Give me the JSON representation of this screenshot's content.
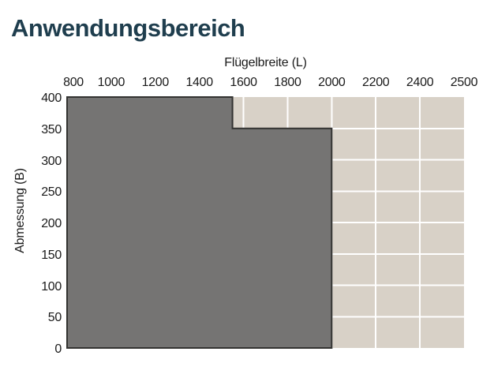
{
  "page": {
    "title": "Anwendungsbereich",
    "background": "#ffffff"
  },
  "chart_data": {
    "type": "area",
    "title": "Anwendungsbereich",
    "x_axis": {
      "label": "Flügelbreite (L)",
      "position": "top",
      "ticks": [
        800,
        1000,
        1200,
        1400,
        1600,
        1800,
        2000,
        2200,
        2400,
        2500
      ],
      "note": "ticks equally spaced; last interval 2400-2500 is 100 units"
    },
    "y_axis": {
      "label": "Abmessung (B)",
      "position": "left",
      "ticks": [
        0,
        50,
        100,
        150,
        200,
        250,
        300,
        350,
        400
      ],
      "range": [
        0,
        400
      ]
    },
    "grid": {
      "visible": true,
      "background_color": "#d8d1c7",
      "line_color": "#ffffff"
    },
    "region": {
      "name": "application-range",
      "fill_color": "#757473",
      "stroke_color": "#333331",
      "points": [
        [
          800,
          400
        ],
        [
          1550,
          400
        ],
        [
          1550,
          350
        ],
        [
          2000,
          350
        ],
        [
          2000,
          0
        ],
        [
          800,
          0
        ]
      ]
    },
    "colors": {
      "title": "#1f3e4e",
      "axis_text": "#1a1a1a"
    }
  }
}
